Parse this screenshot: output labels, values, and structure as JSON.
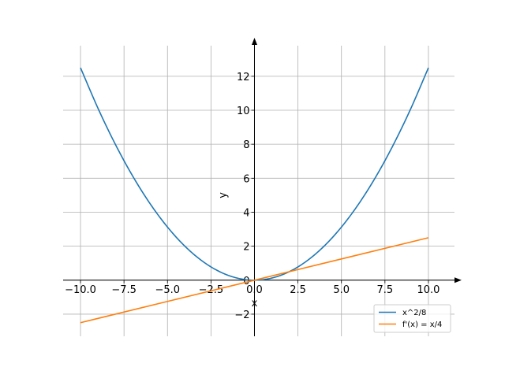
{
  "chart_data": {
    "type": "line",
    "title": "",
    "xlabel": "x",
    "ylabel": "y",
    "xlim": [
      -11,
      11.5
    ],
    "ylim": [
      -3.3,
      13.8
    ],
    "grid": true,
    "axes_style": "centered-arrows",
    "legend_position": "lower-right",
    "x_ticks": [
      -10,
      -7.5,
      -5,
      -2.5,
      0,
      2.5,
      5,
      7.5,
      10
    ],
    "x_tick_labels": [
      "−10.0",
      "−7.5",
      "−5.0",
      "−2.5",
      "0.0",
      "2.5",
      "5.0",
      "7.5",
      "10.0"
    ],
    "y_ticks": [
      -2,
      0,
      2,
      4,
      6,
      8,
      10,
      12
    ],
    "y_tick_labels": [
      "−2",
      "0",
      "2",
      "4",
      "6",
      "8",
      "10",
      "12"
    ],
    "series": [
      {
        "name": "x^2/8",
        "color": "#1f77b4",
        "x": [
          -10,
          -9,
          -8,
          -7,
          -6,
          -5,
          -4,
          -3,
          -2,
          -1,
          0,
          1,
          2,
          3,
          4,
          5,
          6,
          7,
          8,
          9,
          10
        ],
        "y": [
          12.5,
          10.125,
          8,
          6.125,
          4.5,
          3.125,
          2,
          1.125,
          0.5,
          0.125,
          0,
          0.125,
          0.5,
          1.125,
          2,
          3.125,
          4.5,
          6.125,
          8,
          10.125,
          12.5
        ]
      },
      {
        "name": "f'(x) = x/4",
        "color": "#ff7f0e",
        "x": [
          -10,
          -5,
          0,
          5,
          10
        ],
        "y": [
          -2.5,
          -1.25,
          0,
          1.25,
          2.5
        ]
      }
    ]
  }
}
